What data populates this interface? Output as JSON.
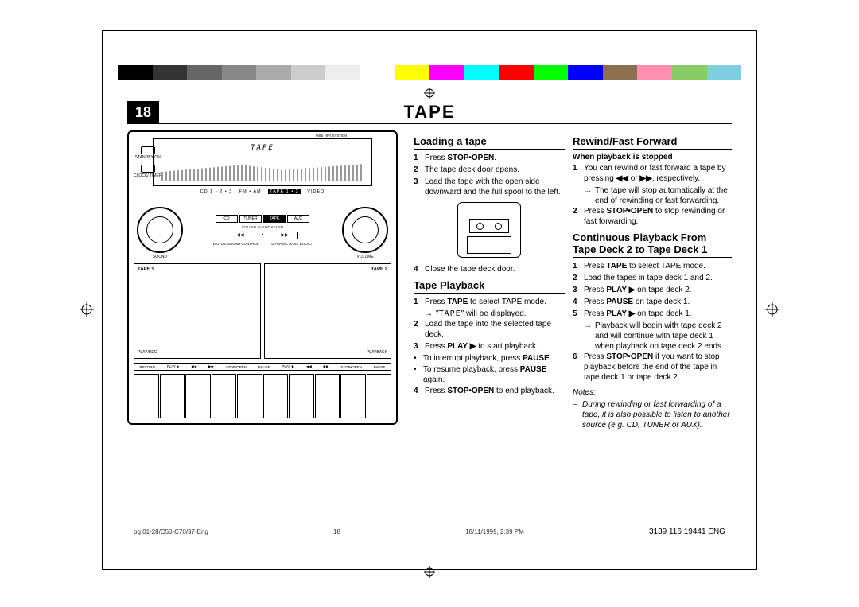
{
  "page_number": "18",
  "header_title": "TAPE",
  "color_bar": [
    "#000000",
    "#333333",
    "#666666",
    "#888888",
    "#aaaaaa",
    "#cccccc",
    "#eeeeee",
    "#ffffff",
    "#ffff00",
    "#ff00ff",
    "#00ffff",
    "#ff0000",
    "#00ff00",
    "#0000ff",
    "#8b6f4e",
    "#ff8fb3",
    "#88cc66",
    "#7fcfe0"
  ],
  "hifi": {
    "top_system": "MINI HIFI SYSTEM",
    "display_text": "TAPE",
    "standby_label": "STANDBY ON",
    "clock_label": "CLOCK/ TIMER",
    "mode_line_left": "CD 1 • 2 • 3",
    "mode_line_mid1": "FM • AM",
    "mode_line_sel": "TAPE 1 • 2",
    "mode_line_right": "VIDEO",
    "btn_cd": "CD",
    "btn_tuner": "TUNER",
    "btn_tape": "TAPE",
    "btn_aux": "AUX",
    "sound_navigation": "SOUND NAVIGATION",
    "nav_prev": "◀◀",
    "nav_next": "▶▶",
    "dsc": "DIGITAL SOUND CONTROL",
    "dbb": "DYNAMIC BASS BOOST",
    "left_knob": "SOUND",
    "right_knob": "VOLUME",
    "tape1": "TAPE 1",
    "tape2": "TAPE 2",
    "playrec": "PLAY/REC",
    "playback": "PLAYBACK",
    "ctrl_record": "RECORD",
    "ctrl_play": "PLAY ▶",
    "ctrl_rew": "◀◀",
    "ctrl_ff": "▶▶",
    "ctrl_stop": "STOP/OPEN",
    "ctrl_pause": "PAUSE",
    "ctrl_play2": "PLAY ▶",
    "ctrl_rew2": "◀◀",
    "ctrl_ff2": "▶▶",
    "ctrl_stop2": "STOP•OPEN",
    "ctrl_pause2": "PAUSE"
  },
  "loading": {
    "title": "Loading a tape",
    "s1_pre": "Press ",
    "s1_b": "STOP•OPEN",
    "s1_post": ".",
    "s2": "The tape deck door opens.",
    "s3": "Load the tape with the open side downward and the full spool to the left.",
    "s4": "Close the tape deck door."
  },
  "playback": {
    "title": "Tape Playback",
    "s1_pre": "Press ",
    "s1_b": "TAPE",
    "s1_post": " to select TAPE mode.",
    "s1_arrow_pre": "\"",
    "s1_arrow_tape": "TAPE",
    "s1_arrow_post": "\" will be displayed.",
    "s2": "Load the tape into the selected tape deck.",
    "s3_pre": "Press ",
    "s3_b": "PLAY ▶",
    "s3_post": " to start playback.",
    "b1_pre": "To interrupt playback, press ",
    "b1_b": "PAUSE",
    "b1_post": ".",
    "b2_pre": "To resume playback, press ",
    "b2_b": "PAUSE",
    "b2_post": " again.",
    "s4_pre": "Press ",
    "s4_b": "STOP•OPEN",
    "s4_post": " to end playback."
  },
  "rewind": {
    "title": "Rewind/Fast Forward",
    "sub": "When playback is stopped",
    "s1_pre": "You can rewind or fast forward a tape by pressing ",
    "s1_b1": "◀◀",
    "s1_mid": " or ",
    "s1_b2": "▶▶",
    "s1_post": ", respectively.",
    "s1_arrow": "The tape will stop automatically at the end of rewinding or fast forwarding.",
    "s2_pre": "Press ",
    "s2_b": "STOP•OPEN",
    "s2_post": " to stop rewinding or fast forwarding."
  },
  "continuous": {
    "title": "Continuous Playback From Tape Deck 2 to Tape Deck 1",
    "s1_pre": "Press ",
    "s1_b": "TAPE",
    "s1_post": " to select TAPE mode.",
    "s2": "Load the tapes in tape deck 1 and 2.",
    "s3_pre": "Press ",
    "s3_b": "PLAY ▶",
    "s3_post": " on tape deck 2.",
    "s4_pre": "Press ",
    "s4_b": "PAUSE",
    "s4_post": " on tape deck 1.",
    "s5_pre": "Press ",
    "s5_b": "PLAY ▶",
    "s5_post": " on tape deck 1.",
    "s5_arrow": "Playback will begin with tape deck 2 and will continue with tape deck 1 when playback on tape deck 2 ends.",
    "s6_pre": "Press ",
    "s6_b": "STOP•OPEN",
    "s6_post": " if you want to stop playback before the end of the tape in tape deck 1 or tape deck 2."
  },
  "notes": {
    "label": "Notes:",
    "n1": "During rewinding or fast forwarding of a tape, it is also possible to listen to another source (e.g. CD, TUNER or AUX)."
  },
  "footer": {
    "file": "pg 01-28/C50-C70/37-Eng",
    "page": "18",
    "date": "18/11/1999, 2:39 PM",
    "ref": "3139 116 19441 ENG"
  }
}
